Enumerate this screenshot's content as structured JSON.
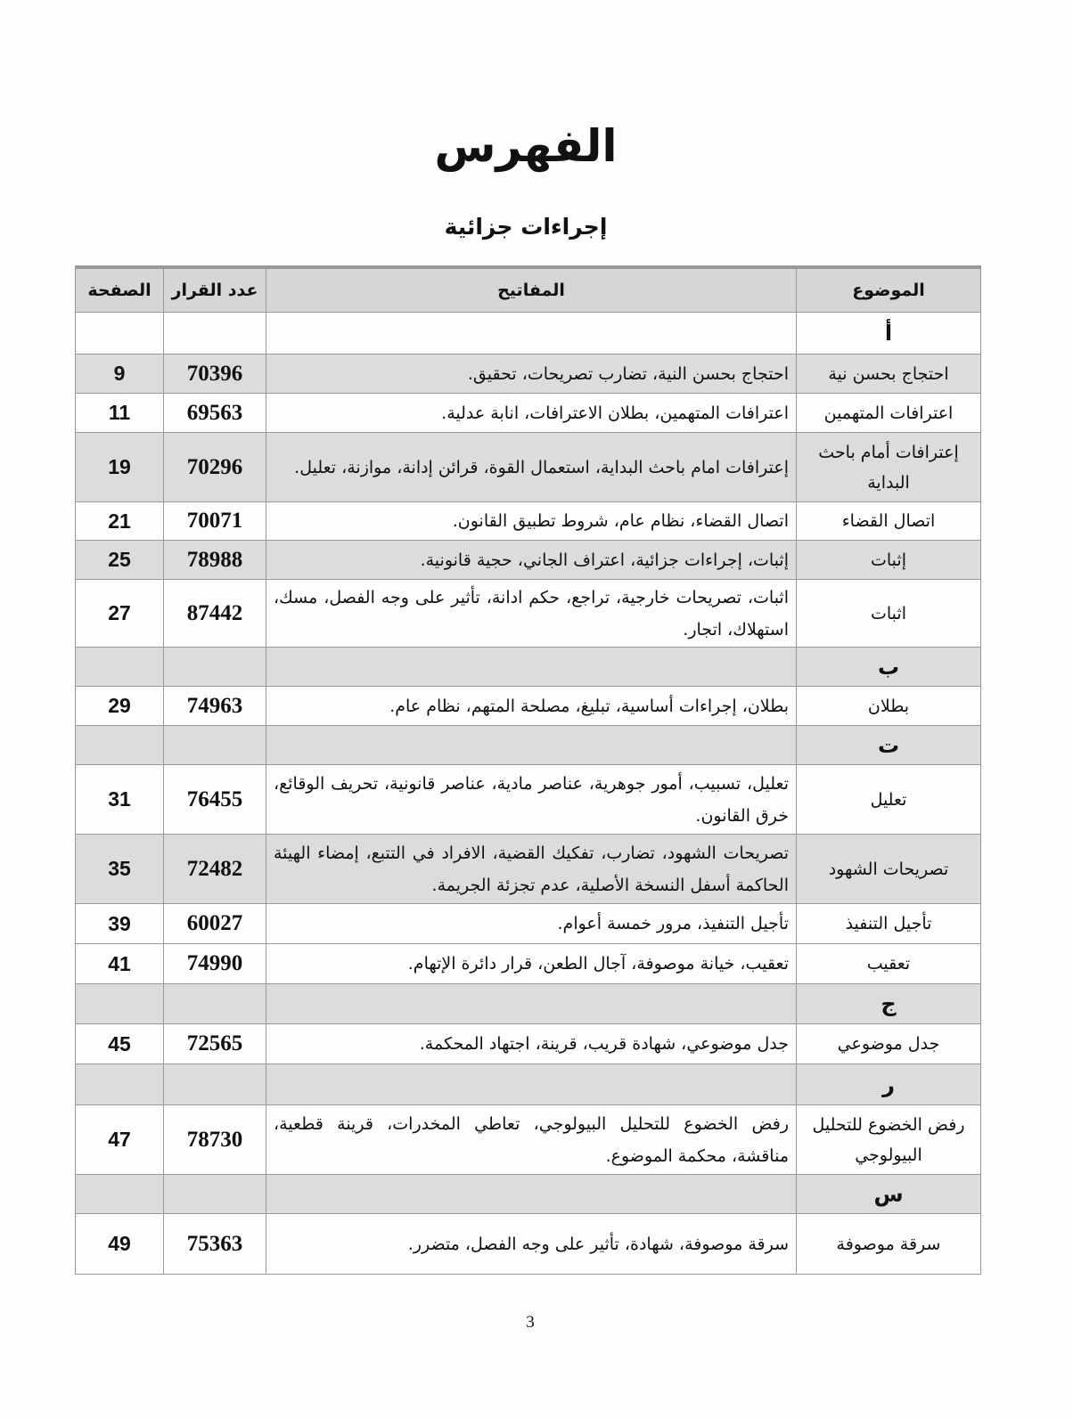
{
  "title": "الفهرس",
  "subtitle": "إجراءات جزائية",
  "table": {
    "headers": {
      "subject": "الموضوع",
      "keywords": "المفاتيح",
      "decision": "عدد القرار",
      "page": "الصفحة"
    },
    "rows": [
      {
        "letter": "أ",
        "shade": false,
        "h": 47
      },
      {
        "subject": "احتجاج بحسن نية",
        "keywords": "احتجاج بحسن النية، تضارب تصريحات، تحقيق.",
        "decision": "70396",
        "page": "9",
        "shade": true,
        "h": 44
      },
      {
        "subject": "اعترافات المتهمين",
        "keywords": "اعترافات المتهمين، بطلان الاعترافات، انابة عدلية.",
        "decision": "69563",
        "page": "11",
        "shade": false,
        "h": 44
      },
      {
        "subject": "إعترافات أمام باحث البداية",
        "keywords": "إعترافات امام باحث البداية، استعمال القوة، قرائن إدانة، موازنة، تعليل.",
        "decision": "70296",
        "page": "19",
        "shade": true,
        "h": 78
      },
      {
        "subject": "اتصال القضاء",
        "keywords": "اتصال القضاء، نظام عام، شروط تطبيق القانون.",
        "decision": "70071",
        "page": "21",
        "shade": false,
        "h": 43
      },
      {
        "subject": "إثبات",
        "keywords": "إثبات، إجراءات جزائية، اعتراف الجاني، حجية قانونية.",
        "decision": "78988",
        "page": "25",
        "shade": true,
        "h": 44
      },
      {
        "subject": "اثبات",
        "keywords": "اثبات، تصريحات خارجية، تراجع، حكم ادانة، تأثير على وجه الفصل، مسك، استهلاك، اتجار.",
        "decision": "87442",
        "page": "27",
        "shade": false,
        "h": 76
      },
      {
        "letter": "ب",
        "shade": true,
        "h": 44
      },
      {
        "subject": "بطلان",
        "keywords": "بطلان، إجراءات أساسية، تبليغ، مصلحة المتهم، نظام عام.",
        "decision": "74963",
        "page": "29",
        "shade": false,
        "h": 44
      },
      {
        "letter": "ت",
        "shade": true,
        "h": 44
      },
      {
        "subject": "تعليل",
        "keywords": "تعليل، تسبيب، أمور جوهرية، عناصر مادية، عناصر قانونية، تحريف الوقائع، خرق القانون.",
        "decision": "76455",
        "page": "31",
        "shade": false,
        "h": 78
      },
      {
        "subject": "تصريحات الشهود",
        "keywords": "تصريحات الشهود، تضارب، تفكيك القضية، الافراد في التتبع، إمضاء الهيئة الحاكمة أسفل النسخة الأصلية، عدم تجزئة الجريمة.",
        "decision": "72482",
        "page": "35",
        "shade": true,
        "h": 78
      },
      {
        "subject": "تأجيل التنفيذ",
        "keywords": "تأجيل التنفيذ، مرور خمسة أعوام.",
        "decision": "60027",
        "page": "39",
        "shade": false,
        "h": 45
      },
      {
        "subject": "تعقيب",
        "keywords": "تعقيب، خيانة موصوفة، آجال الطعن، قرار دائرة الإتهام.",
        "decision": "74990",
        "page": "41",
        "shade": false,
        "h": 45
      },
      {
        "letter": "ج",
        "shade": true,
        "h": 45
      },
      {
        "subject": "جدل موضوعي",
        "keywords": "جدل موضوعي، شهادة قريب، قرينة، اجتهاد المحكمة.",
        "decision": "72565",
        "page": "45",
        "shade": false,
        "h": 45
      },
      {
        "letter": "ر",
        "shade": true,
        "h": 46
      },
      {
        "subject": "رفض الخضوع للتحليل البيولوجي",
        "keywords": "رفض الخضوع للتحليل البيولوجي، تعاطي المخدرات، قرينة قطعية، مناقشة، محكمة الموضوع.",
        "decision": "78730",
        "page": "47",
        "shade": false,
        "h": 78
      },
      {
        "letter": "س",
        "shade": true,
        "h": 44
      },
      {
        "subject": "سرقة موصوفة",
        "keywords": "سرقة موصوفة، شهادة، تأثير على وجه الفصل، متضرر.",
        "decision": "75363",
        "page": "49",
        "shade": false,
        "h": 68
      }
    ]
  },
  "page_number": "3"
}
